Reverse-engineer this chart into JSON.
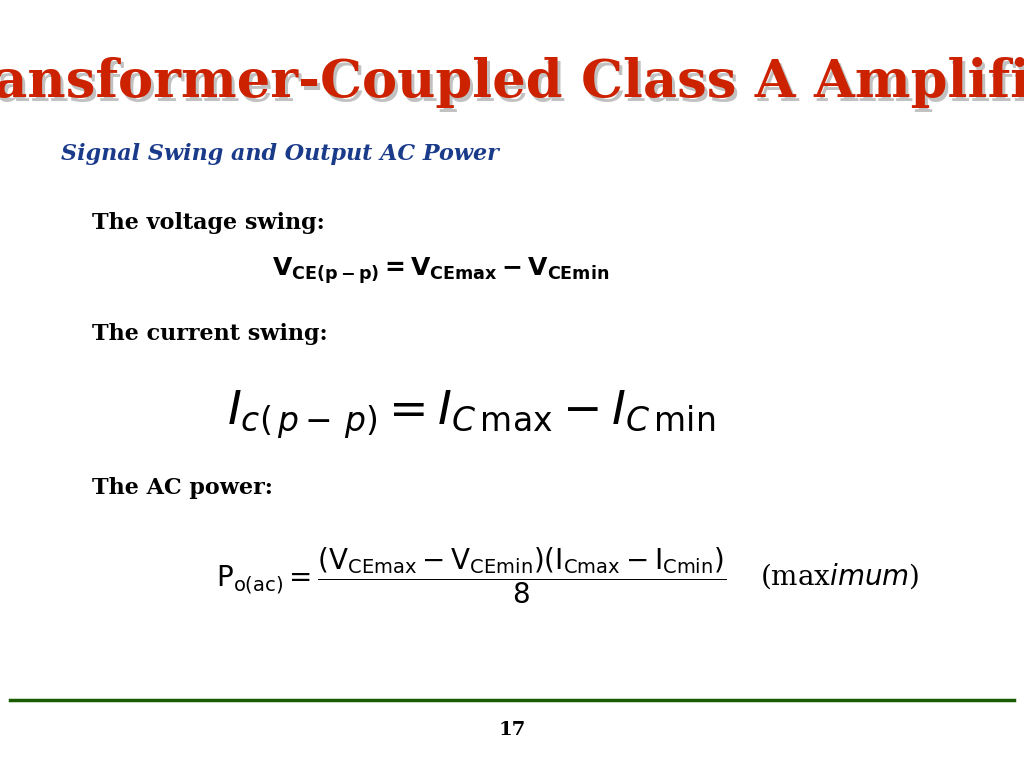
{
  "title": "Transformer-Coupled Class A Amplifier",
  "title_color": "#CC2200",
  "title_shadow_color": "#999999",
  "subtitle": "Signal Swing and Output AC Power",
  "subtitle_color": "#1a3a8a",
  "bg_color": "#ffffff",
  "footer_line_color": "#1a5c00",
  "page_number": "17",
  "label_voltage": "The voltage swing:",
  "label_current": "The current swing:",
  "label_ac": "The AC power:"
}
